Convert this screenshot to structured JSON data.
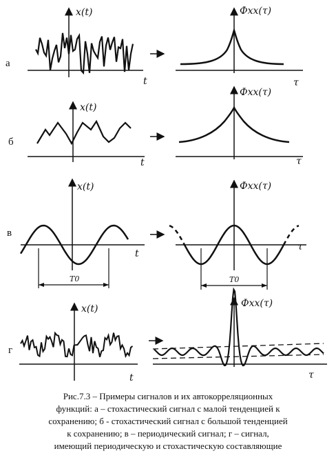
{
  "panels": [
    {
      "id": "a",
      "row_label": "а",
      "signal_axis_label": "x(t)",
      "signal_time_label": "t",
      "acf_axis_label": "Фxx(τ)",
      "acf_lag_label": "τ"
    },
    {
      "id": "b",
      "row_label": "б",
      "signal_axis_label": "x(t)",
      "signal_time_label": "t",
      "acf_axis_label": "Фxx(τ)",
      "acf_lag_label": "τ"
    },
    {
      "id": "v",
      "row_label": "в",
      "signal_axis_label": "x(t)",
      "signal_time_label": "t",
      "signal_period_label": "T0",
      "acf_axis_label": "Фxx(τ)",
      "acf_lag_label": "τ",
      "acf_period_label": "T0"
    },
    {
      "id": "g",
      "row_label": "г",
      "signal_axis_label": "x(t)",
      "signal_time_label": "t",
      "acf_axis_label": "Фxx(τ)",
      "acf_lag_label": "τ"
    }
  ],
  "caption": {
    "lines": [
      "Рис.7.3 – Примеры сигналов и их автокорреляционных",
      "функций: а – стохастический сигнал с малой тенденцией к",
      "сохранению; б - стохастический сигнал с большой тенденцией",
      "к сохранению; в – периодический сигнал; г – сигнал,",
      "имеющий периодическую и стохастическую составляющие"
    ]
  }
}
